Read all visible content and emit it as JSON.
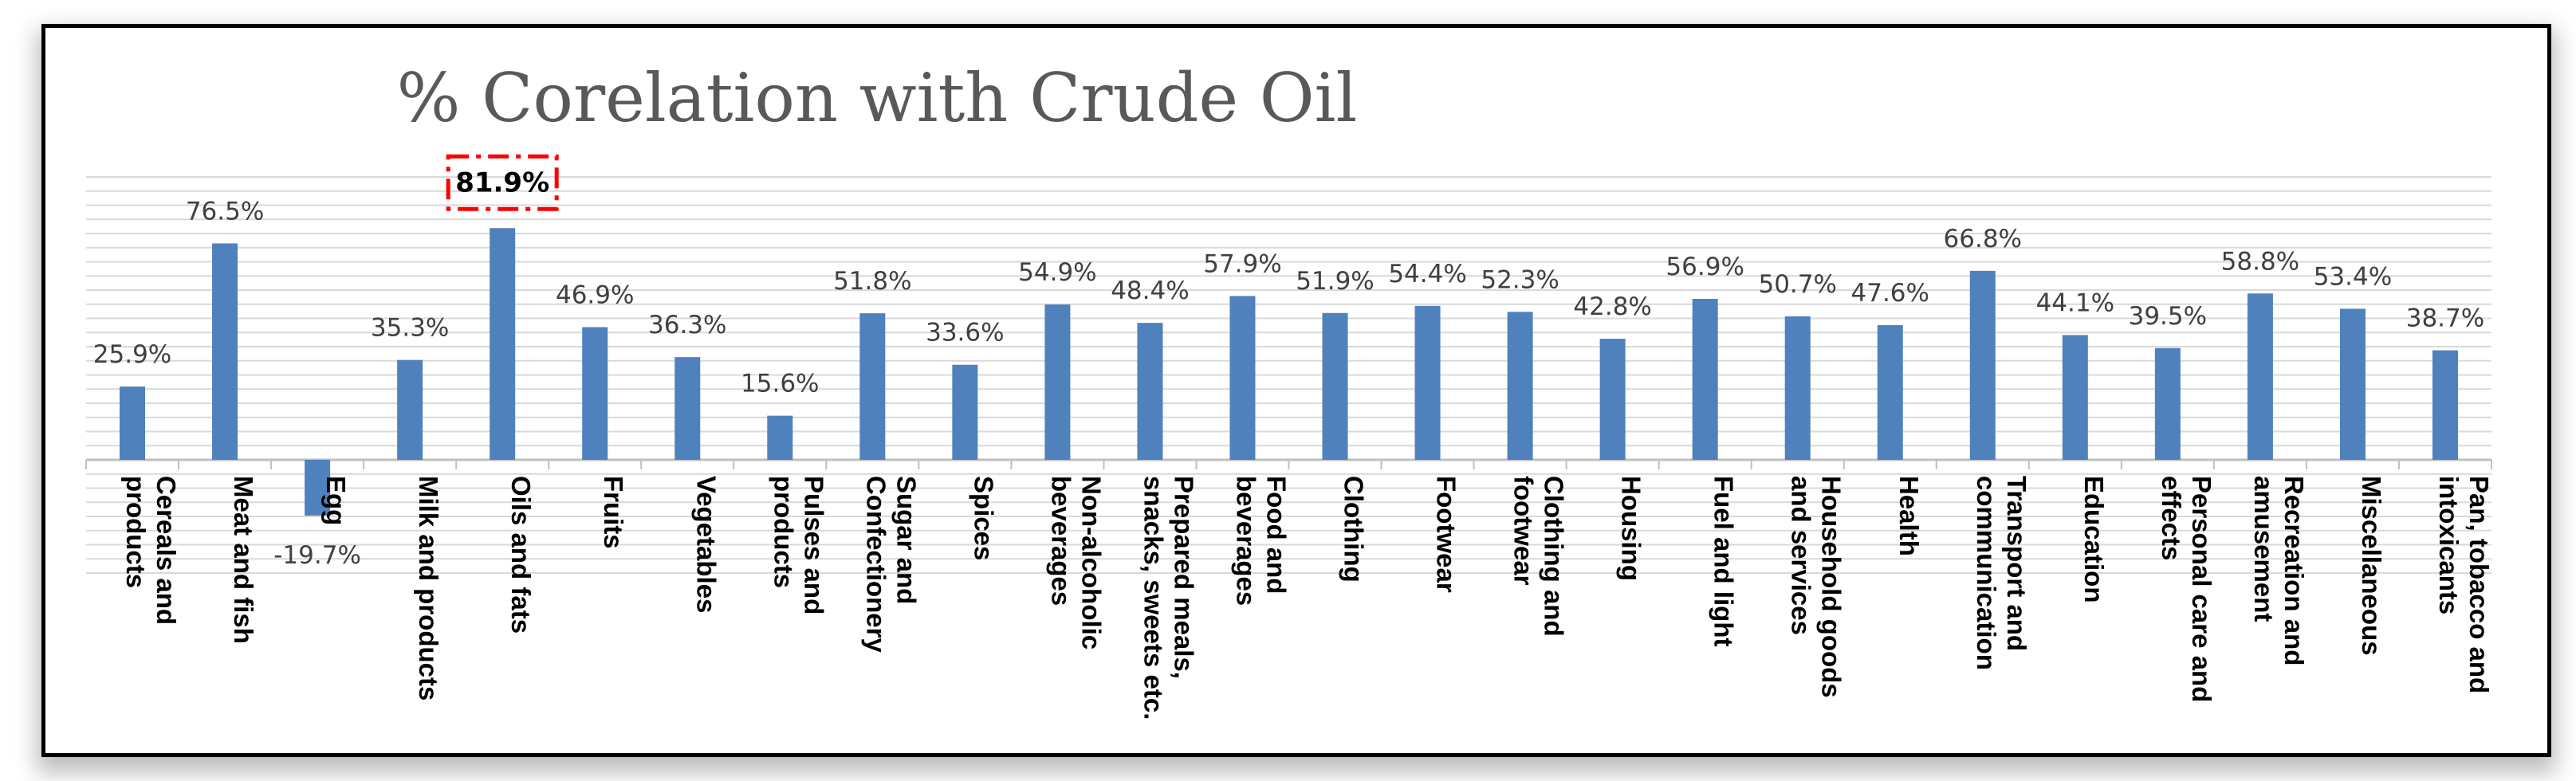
{
  "chart_data": {
    "type": "bar",
    "title": "% Corelation with Crude Oil",
    "categories": [
      [
        "Cereals and",
        "products"
      ],
      [
        "Meat and fish"
      ],
      [
        "Egg"
      ],
      [
        "Milk and products"
      ],
      [
        "Oils and fats"
      ],
      [
        "Fruits"
      ],
      [
        "Vegetables"
      ],
      [
        "Pulses and",
        "products"
      ],
      [
        "Sugar and",
        "Confectionery"
      ],
      [
        "Spices"
      ],
      [
        "Non-alcoholic",
        "beverages"
      ],
      [
        "Prepared meals,",
        "snacks, sweets etc."
      ],
      [
        "Food and",
        "beverages"
      ],
      [
        "Clothing"
      ],
      [
        "Footwear"
      ],
      [
        "Clothing and",
        "footwear"
      ],
      [
        "Housing"
      ],
      [
        "Fuel and light"
      ],
      [
        "Household goods",
        "and services"
      ],
      [
        "Health"
      ],
      [
        "Transport and",
        "communication"
      ],
      [
        "Education"
      ],
      [
        "Personal care and",
        "effects"
      ],
      [
        "Recreation and",
        "amusement"
      ],
      [
        "Miscellaneous"
      ],
      [
        "Pan, tobacco and",
        "intoxicants"
      ]
    ],
    "values": [
      25.9,
      76.5,
      -19.7,
      35.3,
      81.9,
      46.9,
      36.3,
      15.6,
      51.8,
      33.6,
      54.9,
      48.4,
      57.9,
      51.9,
      54.4,
      52.3,
      42.8,
      56.9,
      50.7,
      47.6,
      66.8,
      44.1,
      39.5,
      58.8,
      53.4,
      38.7
    ],
    "data_labels": [
      "25.9%",
      "76.5%",
      "-19.7%",
      "35.3%",
      "81.9%",
      "46.9%",
      "36.3%",
      "15.6%",
      "51.8%",
      "33.6%",
      "54.9%",
      "48.4%",
      "57.9%",
      "51.9%",
      "54.4%",
      "52.3%",
      "42.8%",
      "56.9%",
      "50.7%",
      "47.6%",
      "66.8%",
      "44.1%",
      "39.5%",
      "58.8%",
      "53.4%",
      "38.7%"
    ],
    "highlight_index": 4,
    "ylim": [
      -40,
      100
    ],
    "grid": true,
    "legend": "none",
    "colors": {
      "bar": "#4f81bd",
      "highlight_box": "#ff0000",
      "grid": "#d9d9d9",
      "title": "#595959"
    }
  }
}
